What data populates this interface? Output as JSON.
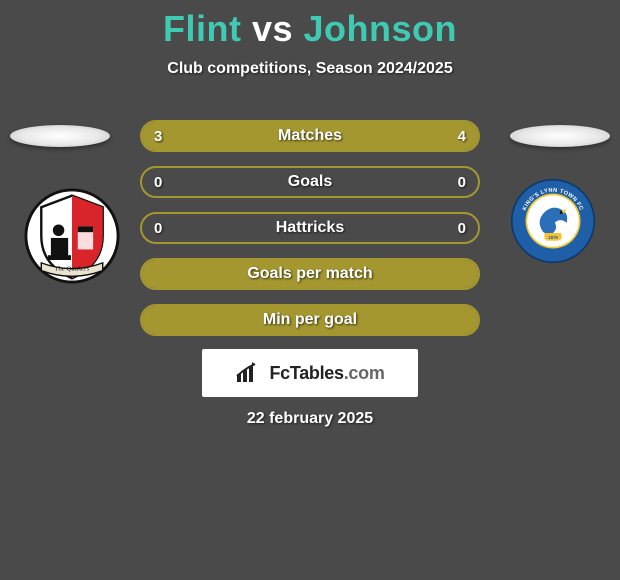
{
  "title": {
    "player1": "Flint",
    "vs": "vs",
    "player2": "Johnson"
  },
  "subtitle": "Club competitions, Season 2024/2025",
  "colors": {
    "accent": "#a59730",
    "player1_fill": "#a59730",
    "player2_fill": "#a59730",
    "title_accent": "#3fcab3",
    "background": "#4a4a4a"
  },
  "bars": [
    {
      "label": "Matches",
      "left_value": "3",
      "right_value": "4",
      "left_pct": 40,
      "right_pct": 60,
      "show_values": true,
      "left_color": "#a59730",
      "right_color": "#a59730"
    },
    {
      "label": "Goals",
      "left_value": "0",
      "right_value": "0",
      "left_pct": 0,
      "right_pct": 0,
      "show_values": true,
      "left_color": "#a59730",
      "right_color": "#a59730"
    },
    {
      "label": "Hattricks",
      "left_value": "0",
      "right_value": "0",
      "left_pct": 0,
      "right_pct": 0,
      "show_values": true,
      "left_color": "#a59730",
      "right_color": "#a59730"
    },
    {
      "label": "Goals per match",
      "left_value": "",
      "right_value": "",
      "left_pct": 100,
      "right_pct": 0,
      "show_values": false,
      "full_fill": true,
      "left_color": "#a59730",
      "right_color": "#a59730"
    },
    {
      "label": "Min per goal",
      "left_value": "",
      "right_value": "",
      "left_pct": 100,
      "right_pct": 0,
      "show_values": false,
      "full_fill": true,
      "left_color": "#a59730",
      "right_color": "#a59730"
    }
  ],
  "logo": {
    "brand": "FcTables",
    "suffix": ".com"
  },
  "date": "22 february 2025",
  "badges": {
    "left": {
      "name": "the-quakers-badge",
      "primary": "#ffffff",
      "secondary": "#d9252a",
      "tertiary": "#111111",
      "banner_text": "The Quakers"
    },
    "right": {
      "name": "kings-lynn-town-badge",
      "primary": "#1f5fa8",
      "secondary": "#f4c430",
      "bird": "#2a6fb8",
      "text": "KING'S LYNN TOWN FC",
      "subtext": "THE LINNETS",
      "year": "1879"
    }
  }
}
